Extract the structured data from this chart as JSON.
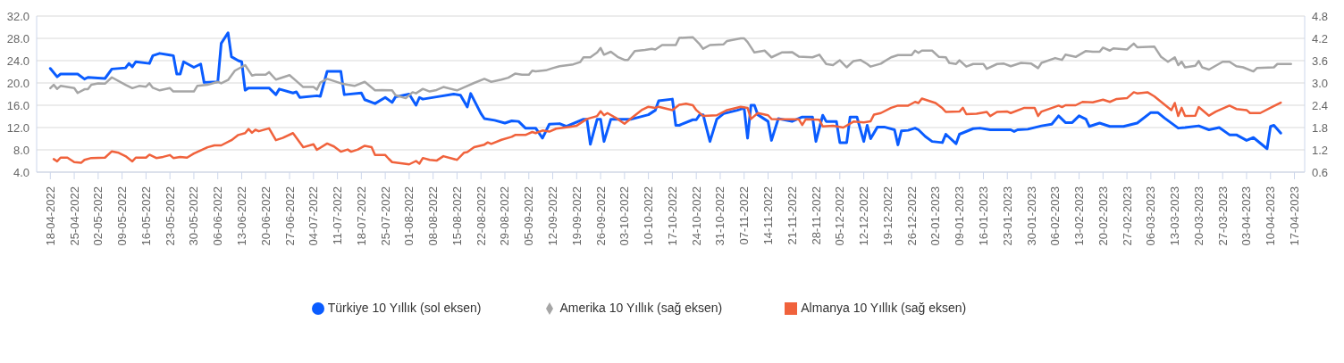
{
  "chart_data": {
    "type": "line",
    "xlim": [
      "2022-04-14",
      "2023-04-20"
    ],
    "xticks": [
      {
        "value": "2022-04-18",
        "label": "18-04-2022"
      },
      {
        "value": "2022-04-25",
        "label": "25-04-2022"
      },
      {
        "value": "2022-05-02",
        "label": "02-05-2022"
      },
      {
        "value": "2022-05-09",
        "label": "09-05-2022"
      },
      {
        "value": "2022-05-16",
        "label": "16-05-2022"
      },
      {
        "value": "2022-05-23",
        "label": "23-05-2022"
      },
      {
        "value": "2022-05-30",
        "label": "30-05-2022"
      },
      {
        "value": "2022-06-06",
        "label": "06-06-2022"
      },
      {
        "value": "2022-06-13",
        "label": "13-06-2022"
      },
      {
        "value": "2022-06-20",
        "label": "20-06-2022"
      },
      {
        "value": "2022-06-27",
        "label": "27-06-2022"
      },
      {
        "value": "2022-07-04",
        "label": "04-07-2022"
      },
      {
        "value": "2022-07-11",
        "label": "11-07-2022"
      },
      {
        "value": "2022-07-18",
        "label": "18-07-2022"
      },
      {
        "value": "2022-07-25",
        "label": "25-07-2022"
      },
      {
        "value": "2022-08-01",
        "label": "01-08-2022"
      },
      {
        "value": "2022-08-08",
        "label": "08-08-2022"
      },
      {
        "value": "2022-08-15",
        "label": "15-08-2022"
      },
      {
        "value": "2022-08-22",
        "label": "22-08-2022"
      },
      {
        "value": "2022-08-29",
        "label": "29-08-2022"
      },
      {
        "value": "2022-09-05",
        "label": "05-09-2022"
      },
      {
        "value": "2022-09-12",
        "label": "12-09-2022"
      },
      {
        "value": "2022-09-19",
        "label": "19-09-2022"
      },
      {
        "value": "2022-09-26",
        "label": "26-09-2022"
      },
      {
        "value": "2022-10-03",
        "label": "03-10-2022"
      },
      {
        "value": "2022-10-10",
        "label": "10-10-2022"
      },
      {
        "value": "2022-10-17",
        "label": "17-10-2022"
      },
      {
        "value": "2022-10-24",
        "label": "24-10-2022"
      },
      {
        "value": "2022-10-31",
        "label": "31-10-2022"
      },
      {
        "value": "2022-11-07",
        "label": "07-11-2022"
      },
      {
        "value": "2022-11-14",
        "label": "14-11-2022"
      },
      {
        "value": "2022-11-21",
        "label": "21-11-2022"
      },
      {
        "value": "2022-11-28",
        "label": "28-11-2022"
      },
      {
        "value": "2022-12-05",
        "label": "05-12-2022"
      },
      {
        "value": "2022-12-12",
        "label": "12-12-2022"
      },
      {
        "value": "2022-12-19",
        "label": "19-12-2022"
      },
      {
        "value": "2022-12-26",
        "label": "26-12-2022"
      },
      {
        "value": "2023-01-02",
        "label": "02-01-2023"
      },
      {
        "value": "2023-01-09",
        "label": "09-01-2023"
      },
      {
        "value": "2023-01-16",
        "label": "16-01-2023"
      },
      {
        "value": "2023-01-23",
        "label": "23-01-2023"
      },
      {
        "value": "2023-01-30",
        "label": "30-01-2023"
      },
      {
        "value": "2023-02-06",
        "label": "06-02-2023"
      },
      {
        "value": "2023-02-13",
        "label": "13-02-2023"
      },
      {
        "value": "2023-02-20",
        "label": "20-02-2023"
      },
      {
        "value": "2023-02-27",
        "label": "27-02-2023"
      },
      {
        "value": "2023-03-06",
        "label": "06-03-2023"
      },
      {
        "value": "2023-03-13",
        "label": "13-03-2023"
      },
      {
        "value": "2023-03-20",
        "label": "20-03-2023"
      },
      {
        "value": "2023-03-27",
        "label": "27-03-2023"
      },
      {
        "value": "2023-04-03",
        "label": "03-04-2023"
      },
      {
        "value": "2023-04-10",
        "label": "10-04-2023"
      },
      {
        "value": "2023-04-17",
        "label": "17-04-2023"
      }
    ],
    "ylim": [
      4,
      32
    ],
    "yticks": [
      {
        "value": 4,
        "label": "4.0"
      },
      {
        "value": 8,
        "label": "8.0"
      },
      {
        "value": 12,
        "label": "12.0"
      },
      {
        "value": 16,
        "label": "16.0"
      },
      {
        "value": 20,
        "label": "20.0"
      },
      {
        "value": 24,
        "label": "24.0"
      },
      {
        "value": 28,
        "label": "28.0"
      },
      {
        "value": 32,
        "label": "32.0"
      }
    ],
    "y2lim": [
      0.6,
      4.8
    ],
    "y2ticks": [
      0.6,
      1.2,
      1.8,
      2.4,
      {
        "value": 3,
        "label": "3.0"
      },
      3.6,
      4.2,
      4.8
    ],
    "grid": "y",
    "legend": "bottom",
    "series": [
      {
        "name": "Türkiye 10 Yıllık (sol eksen)",
        "color": "#0a5cff",
        "x": [
          "2022-04-18",
          "2022-04-20",
          "2022-04-21",
          "2022-04-26",
          "2022-04-28",
          "2022-04-29",
          "2022-05-04",
          "2022-05-06",
          "2022-05-10",
          "2022-05-11",
          "2022-05-12",
          "2022-05-13",
          "2022-05-17",
          "2022-05-18",
          "2022-05-20",
          "2022-05-23",
          "2022-05-24",
          "2022-05-25",
          "2022-05-26",
          "2022-05-27",
          "2022-05-30",
          "2022-06-01",
          "2022-06-02",
          "2022-06-06",
          "2022-06-07",
          "2022-06-09",
          "2022-06-10",
          "2022-06-12",
          "2022-06-13",
          "2022-06-14",
          "2022-06-15",
          "2022-06-21",
          "2022-06-23",
          "2022-06-24",
          "2022-06-28",
          "2022-06-29",
          "2022-06-30",
          "2022-07-05",
          "2022-07-06",
          "2022-07-08",
          "2022-07-12",
          "2022-07-13",
          "2022-07-18",
          "2022-07-19",
          "2022-07-22",
          "2022-07-25",
          "2022-07-27",
          "2022-07-28",
          "2022-08-01",
          "2022-08-03",
          "2022-08-04",
          "2022-08-05",
          "2022-08-09",
          "2022-08-14",
          "2022-08-16",
          "2022-08-18",
          "2022-08-19",
          "2022-08-22",
          "2022-08-23",
          "2022-08-26",
          "2022-08-29",
          "2022-08-31",
          "2022-09-02",
          "2022-09-04",
          "2022-09-07",
          "2022-09-09",
          "2022-09-11",
          "2022-09-14",
          "2022-09-16",
          "2022-09-21",
          "2022-09-22",
          "2022-09-23",
          "2022-09-25",
          "2022-09-26",
          "2022-09-27",
          "2022-09-29",
          "2022-10-05",
          "2022-10-10",
          "2022-10-12",
          "2022-10-13",
          "2022-10-17",
          "2022-10-18",
          "2022-10-19",
          "2022-10-23",
          "2022-10-24",
          "2022-10-25",
          "2022-10-26",
          "2022-10-28",
          "2022-10-30",
          "2022-11-01",
          "2022-11-05",
          "2022-11-07",
          "2022-11-08",
          "2022-11-09",
          "2022-11-10",
          "2022-11-11",
          "2022-11-14",
          "2022-11-15",
          "2022-11-17",
          "2022-11-21",
          "2022-11-24",
          "2022-11-27",
          "2022-11-28",
          "2022-11-30",
          "2022-12-01",
          "2022-12-04",
          "2022-12-05",
          "2022-12-07",
          "2022-12-08",
          "2022-12-10",
          "2022-12-12",
          "2022-12-13",
          "2022-12-14",
          "2022-12-16",
          "2022-12-18",
          "2022-12-21",
          "2022-12-22",
          "2022-12-23",
          "2022-12-25",
          "2022-12-27",
          "2022-12-28",
          "2022-12-30",
          "2023-01-01",
          "2023-01-04",
          "2023-01-05",
          "2023-01-08",
          "2023-01-09",
          "2023-01-13",
          "2023-01-15",
          "2023-01-18",
          "2023-01-24",
          "2023-01-25",
          "2023-01-26",
          "2023-01-29",
          "2023-02-02",
          "2023-02-05",
          "2023-02-07",
          "2023-02-09",
          "2023-02-11",
          "2023-02-13",
          "2023-02-15",
          "2023-02-16",
          "2023-02-19",
          "2023-02-22",
          "2023-02-26",
          "2023-03-02",
          "2023-03-06",
          "2023-03-08",
          "2023-03-10",
          "2023-03-14",
          "2023-03-16",
          "2023-03-20",
          "2023-03-23",
          "2023-03-26",
          "2023-03-29",
          "2023-03-31",
          "2023-04-03",
          "2023-04-05",
          "2023-04-09",
          "2023-04-10",
          "2023-04-11",
          "2023-04-13"
        ],
        "values": [
          22.6,
          21.1,
          21.6,
          21.6,
          20.7,
          21.0,
          20.8,
          22.5,
          22.7,
          23.5,
          22.9,
          23.8,
          23.5,
          24.9,
          25.3,
          25.0,
          24.9,
          21.6,
          21.6,
          23.8,
          22.8,
          23.4,
          20.1,
          20.2,
          27.1,
          29.0,
          24.7,
          24.0,
          23.8,
          18.7,
          19.1,
          19.1,
          17.9,
          18.9,
          18.2,
          18.4,
          17.4,
          17.7,
          17.6,
          22.1,
          22.1,
          17.9,
          18.2,
          17.0,
          16.3,
          17.4,
          16.5,
          17.5,
          18.0,
          16.0,
          17.4,
          17.1,
          17.5,
          18.0,
          17.8,
          15.7,
          18.1,
          14.5,
          13.6,
          13.3,
          12.8,
          13.2,
          13.1,
          11.9,
          11.9,
          10.1,
          12.6,
          12.7,
          12.2,
          13.5,
          13.5,
          9.0,
          13.5,
          13.5,
          9.5,
          13.5,
          13.5,
          14.3,
          15.1,
          16.8,
          17.1,
          12.4,
          12.4,
          13.4,
          13.4,
          14.3,
          14.3,
          9.5,
          13.5,
          14.5,
          15.1,
          15.5,
          10.1,
          16.0,
          16.0,
          14.3,
          13.1,
          9.7,
          13.6,
          13.1,
          13.9,
          13.9,
          9.5,
          14.2,
          13.1,
          13.1,
          9.3,
          9.3,
          13.9,
          13.9,
          9.5,
          12.4,
          10.0,
          12.1,
          12.1,
          11.6,
          8.9,
          11.4,
          11.5,
          11.9,
          11.6,
          10.4,
          9.5,
          9.3,
          10.8,
          9.1,
          10.8,
          11.8,
          11.9,
          11.6,
          11.6,
          11.3,
          11.6,
          11.7,
          12.3,
          12.6,
          14.1,
          12.9,
          12.9,
          14.1,
          13.5,
          12.2,
          12.8,
          12.2,
          12.2,
          12.8,
          14.7,
          14.7,
          13.7,
          11.9,
          12.0,
          12.3,
          11.6,
          12.0,
          10.7,
          10.7,
          9.7,
          10.2,
          8.2,
          12.2,
          12.4,
          11.0
        ]
      },
      {
        "name": "Amerika 10 Yıllık (sağ eksen)",
        "color": "#a6a6a6",
        "axis": "y2",
        "x": [
          "2022-04-18",
          "2022-04-19",
          "2022-04-20",
          "2022-04-21",
          "2022-04-25",
          "2022-04-26",
          "2022-04-28",
          "2022-04-29",
          "2022-04-30",
          "2022-05-02",
          "2022-05-04",
          "2022-05-06",
          "2022-05-10",
          "2022-05-12",
          "2022-05-14",
          "2022-05-16",
          "2022-05-17",
          "2022-05-18",
          "2022-05-20",
          "2022-05-23",
          "2022-05-24",
          "2022-05-26",
          "2022-05-30",
          "2022-05-31",
          "2022-06-03",
          "2022-06-06",
          "2022-06-07",
          "2022-06-09",
          "2022-06-11",
          "2022-06-14",
          "2022-06-16",
          "2022-06-17",
          "2022-06-20",
          "2022-06-21",
          "2022-06-23",
          "2022-06-27",
          "2022-06-29",
          "2022-07-01",
          "2022-07-04",
          "2022-07-05",
          "2022-07-06",
          "2022-07-08",
          "2022-07-12",
          "2022-07-14",
          "2022-07-16",
          "2022-07-19",
          "2022-07-22",
          "2022-07-24",
          "2022-07-27",
          "2022-07-28",
          "2022-07-31",
          "2022-08-02",
          "2022-08-03",
          "2022-08-05",
          "2022-08-07",
          "2022-08-09",
          "2022-08-11",
          "2022-08-15",
          "2022-08-18",
          "2022-08-20",
          "2022-08-23",
          "2022-08-25",
          "2022-08-28",
          "2022-08-30",
          "2022-09-01",
          "2022-09-03",
          "2022-09-05",
          "2022-09-06",
          "2022-09-07",
          "2022-09-10",
          "2022-09-12",
          "2022-09-14",
          "2022-09-18",
          "2022-09-20",
          "2022-09-21",
          "2022-09-23",
          "2022-09-25",
          "2022-09-26",
          "2022-09-27",
          "2022-09-29",
          "2022-10-01",
          "2022-10-03",
          "2022-10-04",
          "2022-10-06",
          "2022-10-09",
          "2022-10-11",
          "2022-10-12",
          "2022-10-14",
          "2022-10-18",
          "2022-10-19",
          "2022-10-23",
          "2022-10-25",
          "2022-10-26",
          "2022-10-28",
          "2022-11-01",
          "2022-11-02",
          "2022-11-06",
          "2022-11-07",
          "2022-11-08",
          "2022-11-10",
          "2022-11-13",
          "2022-11-15",
          "2022-11-18",
          "2022-11-21",
          "2022-11-23",
          "2022-11-27",
          "2022-11-29",
          "2022-12-01",
          "2022-12-03",
          "2022-12-05",
          "2022-12-07",
          "2022-12-09",
          "2022-12-11",
          "2022-12-13",
          "2022-12-14",
          "2022-12-17",
          "2022-12-18",
          "2022-12-20",
          "2022-12-22",
          "2022-12-23",
          "2022-12-26",
          "2022-12-27",
          "2022-12-28",
          "2022-12-29",
          "2023-01-01",
          "2023-01-03",
          "2023-01-05",
          "2023-01-06",
          "2023-01-08",
          "2023-01-09",
          "2023-01-11",
          "2023-01-13",
          "2023-01-16",
          "2023-01-17",
          "2023-01-20",
          "2023-01-22",
          "2023-01-24",
          "2023-01-27",
          "2023-01-30",
          "2023-02-01",
          "2023-02-02",
          "2023-02-06",
          "2023-02-08",
          "2023-02-09",
          "2023-02-12",
          "2023-02-15",
          "2023-02-17",
          "2023-02-19",
          "2023-02-20",
          "2023-02-22",
          "2023-02-23",
          "2023-02-27",
          "2023-03-01",
          "2023-03-02",
          "2023-03-07",
          "2023-03-09",
          "2023-03-11",
          "2023-03-13",
          "2023-03-14",
          "2023-03-15",
          "2023-03-16",
          "2023-03-19",
          "2023-03-20",
          "2023-03-21",
          "2023-03-23",
          "2023-03-27",
          "2023-03-29",
          "2023-03-31",
          "2023-04-02",
          "2023-04-05",
          "2023-04-06",
          "2023-04-11",
          "2023-04-12",
          "2023-04-16"
        ],
        "values": [
          2.86,
          2.95,
          2.84,
          2.92,
          2.86,
          2.73,
          2.83,
          2.83,
          2.95,
          2.99,
          2.98,
          3.15,
          2.95,
          2.86,
          2.92,
          2.9,
          2.99,
          2.87,
          2.8,
          2.86,
          2.77,
          2.77,
          2.77,
          2.92,
          2.95,
          3.03,
          2.99,
          3.08,
          3.33,
          3.48,
          3.2,
          3.22,
          3.22,
          3.29,
          3.09,
          3.21,
          3.05,
          2.89,
          2.89,
          2.82,
          3.01,
          3.11,
          2.99,
          2.95,
          2.92,
          3.03,
          2.8,
          2.81,
          2.8,
          2.67,
          2.59,
          2.75,
          2.72,
          2.84,
          2.77,
          2.81,
          2.89,
          2.8,
          2.92,
          3.0,
          3.11,
          3.03,
          3.09,
          3.14,
          3.25,
          3.22,
          3.22,
          3.33,
          3.31,
          3.34,
          3.4,
          3.45,
          3.5,
          3.56,
          3.69,
          3.69,
          3.82,
          3.94,
          3.76,
          3.84,
          3.7,
          3.62,
          3.62,
          3.86,
          3.89,
          3.92,
          3.9,
          4.02,
          4.02,
          4.21,
          4.23,
          4.04,
          3.92,
          4.02,
          4.04,
          4.13,
          4.2,
          4.2,
          4.1,
          3.82,
          3.87,
          3.69,
          3.82,
          3.83,
          3.71,
          3.69,
          3.76,
          3.51,
          3.48,
          3.61,
          3.42,
          3.59,
          3.62,
          3.51,
          3.44,
          3.52,
          3.58,
          3.69,
          3.75,
          3.75,
          3.75,
          3.87,
          3.81,
          3.87,
          3.87,
          3.7,
          3.69,
          3.54,
          3.51,
          3.61,
          3.44,
          3.51,
          3.51,
          3.38,
          3.51,
          3.52,
          3.45,
          3.54,
          3.52,
          3.4,
          3.54,
          3.67,
          3.62,
          3.76,
          3.7,
          3.86,
          3.84,
          3.84,
          3.95,
          3.87,
          3.93,
          3.9,
          4.06,
          3.96,
          3.98,
          3.7,
          3.57,
          3.69,
          3.48,
          3.57,
          3.42,
          3.46,
          3.59,
          3.42,
          3.36,
          3.57,
          3.57,
          3.45,
          3.42,
          3.31,
          3.4,
          3.42,
          3.51,
          3.51
        ]
      },
      {
        "name": "Almanya 10 Yıllık (sağ eksen)",
        "color": "#f0623c",
        "axis": "y2",
        "x": [
          "2022-04-19",
          "2022-04-20",
          "2022-04-21",
          "2022-04-23",
          "2022-04-25",
          "2022-04-27",
          "2022-04-28",
          "2022-04-30",
          "2022-05-04",
          "2022-05-06",
          "2022-05-08",
          "2022-05-10",
          "2022-05-12",
          "2022-05-13",
          "2022-05-16",
          "2022-05-17",
          "2022-05-19",
          "2022-05-21",
          "2022-05-23",
          "2022-05-24",
          "2022-05-26",
          "2022-05-28",
          "2022-05-30",
          "2022-06-03",
          "2022-06-05",
          "2022-06-07",
          "2022-06-10",
          "2022-06-12",
          "2022-06-14",
          "2022-06-15",
          "2022-06-16",
          "2022-06-17",
          "2022-06-18",
          "2022-06-21",
          "2022-06-23",
          "2022-06-25",
          "2022-06-28",
          "2022-07-01",
          "2022-07-04",
          "2022-07-05",
          "2022-07-08",
          "2022-07-10",
          "2022-07-12",
          "2022-07-14",
          "2022-07-15",
          "2022-07-17",
          "2022-07-19",
          "2022-07-21",
          "2022-07-22",
          "2022-07-25",
          "2022-07-26",
          "2022-07-27",
          "2022-08-01",
          "2022-08-03",
          "2022-08-04",
          "2022-08-05",
          "2022-08-07",
          "2022-08-09",
          "2022-08-11",
          "2022-08-15",
          "2022-08-17",
          "2022-08-18",
          "2022-08-20",
          "2022-08-23",
          "2022-08-24",
          "2022-08-25",
          "2022-08-28",
          "2022-08-31",
          "2022-09-01",
          "2022-09-04",
          "2022-09-06",
          "2022-09-07",
          "2022-09-09",
          "2022-09-11",
          "2022-09-13",
          "2022-09-17",
          "2022-09-19",
          "2022-09-22",
          "2022-09-25",
          "2022-09-26",
          "2022-09-27",
          "2022-09-28",
          "2022-10-01",
          "2022-10-03",
          "2022-10-05",
          "2022-10-08",
          "2022-10-10",
          "2022-10-12",
          "2022-10-13",
          "2022-10-17",
          "2022-10-19",
          "2022-10-21",
          "2022-10-23",
          "2022-10-24",
          "2022-10-26",
          "2022-10-30",
          "2022-11-02",
          "2022-11-06",
          "2022-11-08",
          "2022-11-09",
          "2022-11-11",
          "2022-11-14",
          "2022-11-15",
          "2022-11-20",
          "2022-11-23",
          "2022-11-24",
          "2022-11-25",
          "2022-11-29",
          "2022-11-30",
          "2022-12-03",
          "2022-12-06",
          "2022-12-09",
          "2022-12-12",
          "2022-12-14",
          "2022-12-15",
          "2022-12-17",
          "2022-12-20",
          "2022-12-22",
          "2022-12-25",
          "2022-12-27",
          "2022-12-28",
          "2022-12-29",
          "2023-01-02",
          "2023-01-04",
          "2023-01-05",
          "2023-01-09",
          "2023-01-10",
          "2023-01-11",
          "2023-01-14",
          "2023-01-17",
          "2023-01-18",
          "2023-01-20",
          "2023-01-23",
          "2023-01-24",
          "2023-01-28",
          "2023-01-31",
          "2023-02-01",
          "2023-02-02",
          "2023-02-07",
          "2023-02-08",
          "2023-02-09",
          "2023-02-12",
          "2023-02-14",
          "2023-02-17",
          "2023-02-20",
          "2023-02-22",
          "2023-02-24",
          "2023-02-27",
          "2023-03-01",
          "2023-03-02",
          "2023-03-05",
          "2023-03-07",
          "2023-03-12",
          "2023-03-13",
          "2023-03-14",
          "2023-03-15",
          "2023-03-16",
          "2023-03-19",
          "2023-03-20",
          "2023-03-23",
          "2023-03-25",
          "2023-03-29",
          "2023-03-31",
          "2023-04-03",
          "2023-04-04",
          "2023-04-07",
          "2023-04-11",
          "2023-04-13"
        ],
        "values": [
          0.95,
          0.89,
          0.99,
          0.99,
          0.87,
          0.85,
          0.93,
          0.98,
          0.99,
          1.16,
          1.12,
          1.03,
          0.89,
          0.99,
          0.99,
          1.07,
          0.98,
          1.01,
          1.06,
          0.98,
          1.01,
          0.99,
          1.1,
          1.27,
          1.32,
          1.32,
          1.46,
          1.6,
          1.65,
          1.76,
          1.66,
          1.74,
          1.7,
          1.78,
          1.46,
          1.52,
          1.65,
          1.27,
          1.35,
          1.2,
          1.37,
          1.29,
          1.15,
          1.21,
          1.15,
          1.21,
          1.31,
          1.27,
          1.06,
          1.06,
          0.96,
          0.87,
          0.81,
          0.9,
          0.83,
          0.98,
          0.93,
          0.91,
          1.03,
          0.93,
          1.12,
          1.14,
          1.27,
          1.34,
          1.4,
          1.36,
          1.47,
          1.55,
          1.6,
          1.6,
          1.68,
          1.65,
          1.72,
          1.69,
          1.77,
          1.82,
          1.85,
          2.03,
          2.11,
          2.24,
          2.13,
          2.19,
          2.03,
          1.9,
          2.05,
          2.27,
          2.36,
          2.33,
          2.36,
          2.27,
          2.41,
          2.44,
          2.4,
          2.27,
          2.11,
          2.13,
          2.27,
          2.36,
          2.33,
          2.03,
          2.19,
          2.13,
          2.03,
          2.02,
          2.02,
          1.87,
          2.02,
          2.01,
          1.83,
          1.85,
          1.8,
          1.96,
          1.94,
          1.97,
          2.15,
          2.19,
          2.33,
          2.39,
          2.39,
          2.49,
          2.46,
          2.58,
          2.46,
          2.32,
          2.22,
          2.23,
          2.33,
          2.16,
          2.17,
          2.22,
          2.11,
          2.22,
          2.23,
          2.19,
          2.33,
          2.33,
          2.11,
          2.23,
          2.39,
          2.35,
          2.4,
          2.4,
          2.49,
          2.48,
          2.55,
          2.49,
          2.57,
          2.59,
          2.75,
          2.72,
          2.75,
          2.64,
          2.27,
          2.46,
          2.11,
          2.33,
          2.11,
          2.12,
          2.35,
          2.12,
          2.23,
          2.39,
          2.3,
          2.27,
          2.19,
          2.19,
          2.38,
          2.47
        ]
      }
    ]
  }
}
